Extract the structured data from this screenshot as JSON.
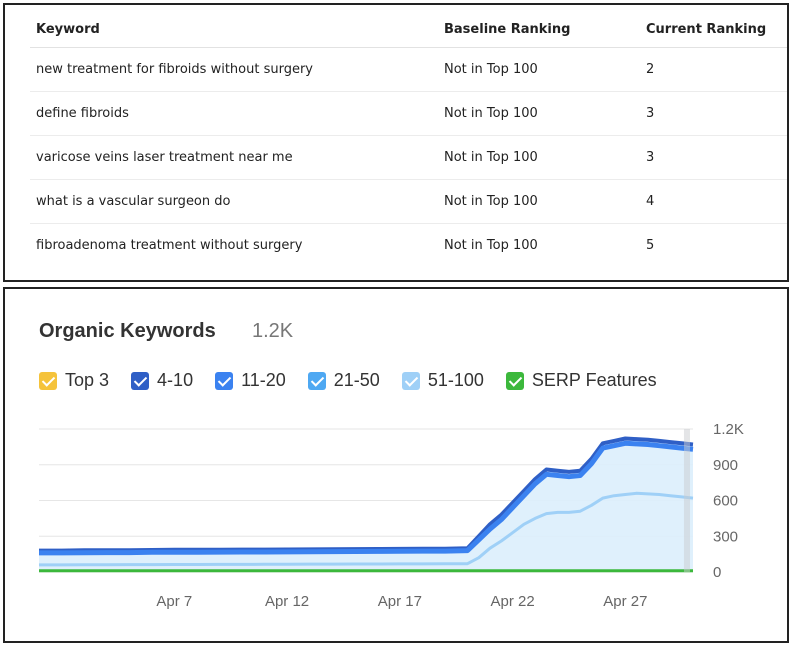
{
  "table": {
    "headers": [
      "Keyword",
      "Baseline Ranking",
      "Current Ranking"
    ],
    "rows": [
      [
        "new treatment for fibroids without surgery",
        "Not in Top 100",
        "2"
      ],
      [
        "define fibroids",
        "Not in Top 100",
        "3"
      ],
      [
        "varicose veins laser treatment near me",
        "Not in Top 100",
        "3"
      ],
      [
        "what is a vascular surgeon do",
        "Not in Top 100",
        "4"
      ],
      [
        "fibroadenoma treatment without surgery",
        "Not in Top 100",
        "5"
      ]
    ]
  },
  "chart_data": {
    "type": "area",
    "title": "Organic Keywords",
    "subtitle": "1.2K",
    "legend": [
      {
        "label": "Top 3",
        "color": "#f5c33b"
      },
      {
        "label": "4-10",
        "color": "#2f5fc6"
      },
      {
        "label": "11-20",
        "color": "#3b82f0"
      },
      {
        "label": "21-50",
        "color": "#4ea8f2"
      },
      {
        "label": "51-100",
        "color": "#9fd0f7"
      },
      {
        "label": "SERP Features",
        "color": "#3cb83c"
      }
    ],
    "legend_position": "top-left",
    "x_ticks": [
      "Apr 7",
      "Apr 12",
      "Apr 17",
      "Apr 22",
      "Apr 27"
    ],
    "y_ticks": [
      "1.2K",
      "900",
      "600",
      "300",
      "0"
    ],
    "ylim": [
      0,
      1200
    ],
    "grid": true,
    "x": [
      1,
      2,
      3,
      4,
      5,
      6,
      7,
      8,
      9,
      10,
      11,
      12,
      13,
      14,
      15,
      16,
      17,
      18,
      19,
      20,
      20.5,
      21,
      21.5,
      22,
      22.5,
      23,
      23.5,
      24,
      24.5,
      25,
      25.5,
      26,
      26.5,
      27,
      27.5,
      28,
      28.5,
      29,
      29.5,
      30
    ],
    "series": [
      {
        "name": "51-100",
        "values": [
          180,
          180,
          182,
          183,
          183,
          185,
          186,
          186,
          187,
          188,
          188,
          189,
          190,
          191,
          192,
          193,
          194,
          195,
          195,
          200,
          300,
          400,
          480,
          580,
          680,
          780,
          860,
          850,
          840,
          850,
          950,
          1080,
          1100,
          1120,
          1115,
          1110,
          1100,
          1090,
          1080,
          1070
        ]
      },
      {
        "name": "21-50",
        "values": [
          160,
          160,
          162,
          163,
          163,
          165,
          166,
          166,
          167,
          168,
          168,
          169,
          170,
          171,
          172,
          173,
          174,
          175,
          175,
          180,
          270,
          360,
          440,
          540,
          640,
          740,
          820,
          810,
          800,
          810,
          910,
          1040,
          1060,
          1080,
          1075,
          1070,
          1060,
          1050,
          1040,
          1030
        ]
      },
      {
        "name": "11-20",
        "values": [
          60,
          60,
          61,
          61,
          62,
          62,
          63,
          63,
          64,
          64,
          65,
          65,
          66,
          66,
          67,
          67,
          68,
          68,
          69,
          70,
          120,
          200,
          260,
          330,
          400,
          450,
          490,
          500,
          500,
          510,
          560,
          620,
          640,
          650,
          660,
          655,
          650,
          640,
          630,
          620
        ]
      },
      {
        "name": "SERP Features",
        "values": [
          10,
          10,
          10,
          10,
          10,
          10,
          10,
          10,
          10,
          10,
          10,
          10,
          10,
          10,
          10,
          10,
          10,
          10,
          10,
          10,
          10,
          10,
          10,
          10,
          10,
          10,
          10,
          10,
          10,
          10,
          10,
          10,
          10,
          10,
          10,
          10,
          10,
          10,
          10,
          10
        ]
      }
    ]
  }
}
